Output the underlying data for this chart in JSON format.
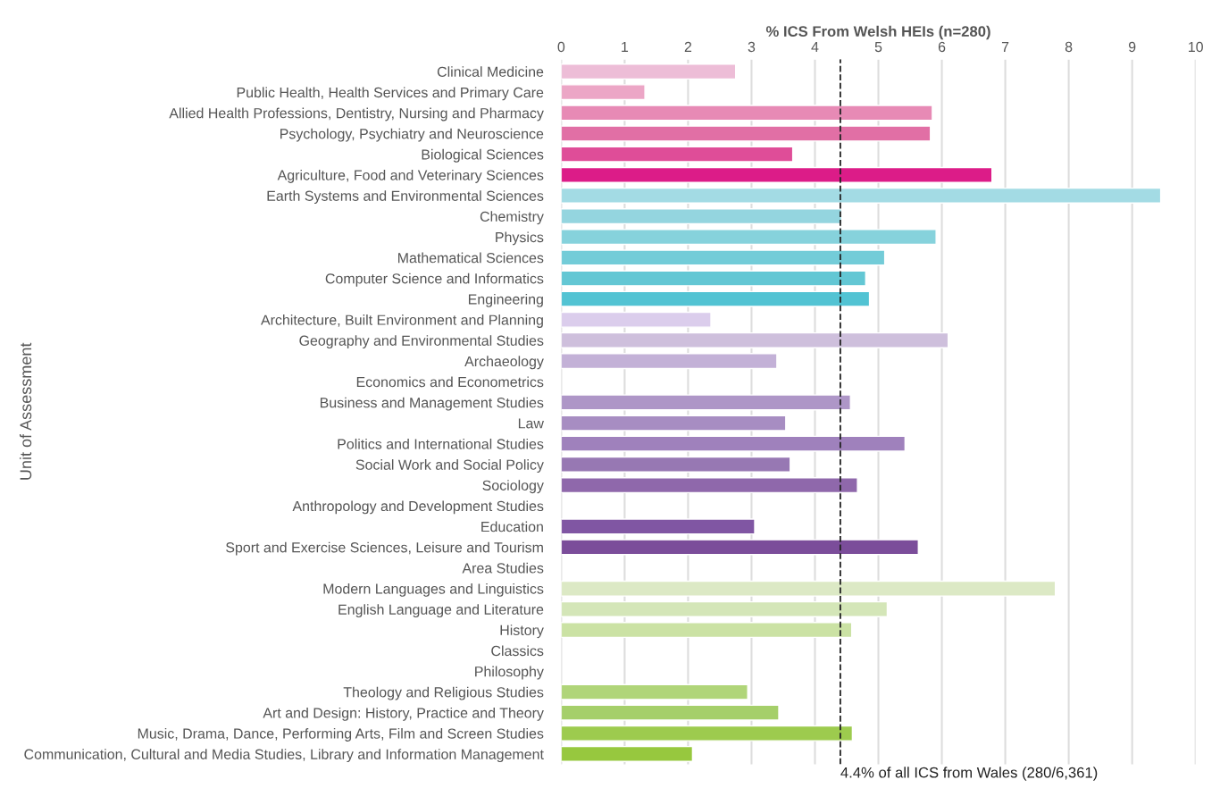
{
  "chart_data": {
    "type": "bar",
    "orientation": "horizontal",
    "xlabel": "% ICS From Welsh HEIs (n=280)",
    "ylabel": "Unit of Assessment",
    "categories": [
      "Clinical Medicine",
      "Public Health, Health Services and Primary Care",
      "Allied Health Professions, Dentistry, Nursing and Pharmacy",
      "Psychology, Psychiatry and Neuroscience",
      "Biological Sciences",
      "Agriculture, Food and Veterinary Sciences",
      "Earth Systems and Environmental Sciences",
      "Chemistry",
      "Physics",
      "Mathematical Sciences",
      "Computer Science and Informatics",
      "Engineering",
      "Architecture, Built Environment and Planning",
      "Geography and Environmental Studies",
      "Archaeology",
      "Economics and Econometrics",
      "Business and Management Studies",
      "Law",
      "Politics and International Studies",
      "Social Work and Social Policy",
      "Sociology",
      "Anthropology and Development Studies",
      "Education",
      "Sport and Exercise Sciences, Leisure and Tourism",
      "Area Studies",
      "Modern Languages and Linguistics",
      "English Language and Literature",
      "History",
      "Classics",
      "Philosophy",
      "Theology and Religious Studies",
      "Art and Design: History, Practice and Theory",
      "Music, Drama, Dance, Performing Arts, Film and Screen Studies",
      "Communication, Cultural and Media Studies, Library and Information Management"
    ],
    "values": [
      2.75,
      1.32,
      5.85,
      5.82,
      3.65,
      6.79,
      9.45,
      4.42,
      5.91,
      5.1,
      4.8,
      4.86,
      2.36,
      6.1,
      3.4,
      null,
      4.56,
      3.54,
      5.42,
      3.61,
      4.67,
      null,
      3.05,
      5.63,
      null,
      7.79,
      5.14,
      4.58,
      null,
      null,
      2.94,
      3.43,
      4.59,
      2.07
    ],
    "colors": [
      "#edbdd7",
      "#eca6c6",
      "#e78ab5",
      "#e16fa5",
      "#df4d98",
      "#dc1c88",
      "#a3dbe4",
      "#94d5df",
      "#86d2dc",
      "#73ccd8",
      "#63c7d4",
      "#52c3d3",
      "#dbcdec",
      "#cebfdc",
      "#c3b1d7",
      "#b9a3d1",
      "#ae96c7",
      "#a78dc2",
      "#9f81bc",
      "#9778b3",
      "#8f68ab",
      "#8860a7",
      "#8056a3",
      "#7b4d9a",
      "#e4efd3",
      "#dce9c5",
      "#d4e6b8",
      "#cbe2a4",
      "#c0dc92",
      "#b8d985",
      "#b0d579",
      "#a5cf6a",
      "#9dcb4e",
      "#97c83e"
    ],
    "xlim": [
      0,
      10
    ],
    "xticks": [
      0,
      1,
      2,
      3,
      4,
      5,
      6,
      7,
      8,
      9,
      10
    ],
    "grid": "x",
    "ref_lines": [
      {
        "axis": "x",
        "value": 4.4,
        "label": "4.4% of all ICS from Wales (280/6,361)",
        "color": "#222222",
        "line_style": "dashed"
      }
    ]
  }
}
